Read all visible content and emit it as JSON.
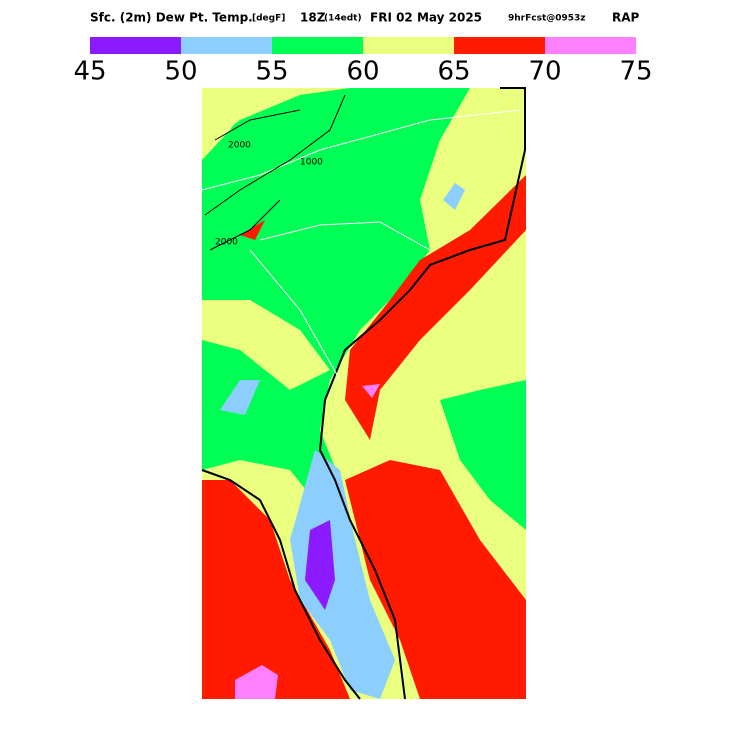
{
  "header": {
    "title": "Sfc. (2m) Dew Pt. Temp.",
    "units": "[degF]",
    "valid_time": "18Z",
    "local_time": "(14edt)",
    "date": "FRI 02 May 2025",
    "forecast": "9hrFcst@0953z",
    "model": "RAP"
  },
  "colorbar": {
    "bins": [
      45,
      50,
      55,
      60,
      65,
      70,
      75
    ],
    "colors": [
      "#8c1aff",
      "#8ccfff",
      "#00ff55",
      "#eaff80",
      "#ff1a00",
      "#ff80ff"
    ]
  },
  "map": {
    "contour_labels": [
      "2000",
      "1000",
      "2000"
    ]
  }
}
